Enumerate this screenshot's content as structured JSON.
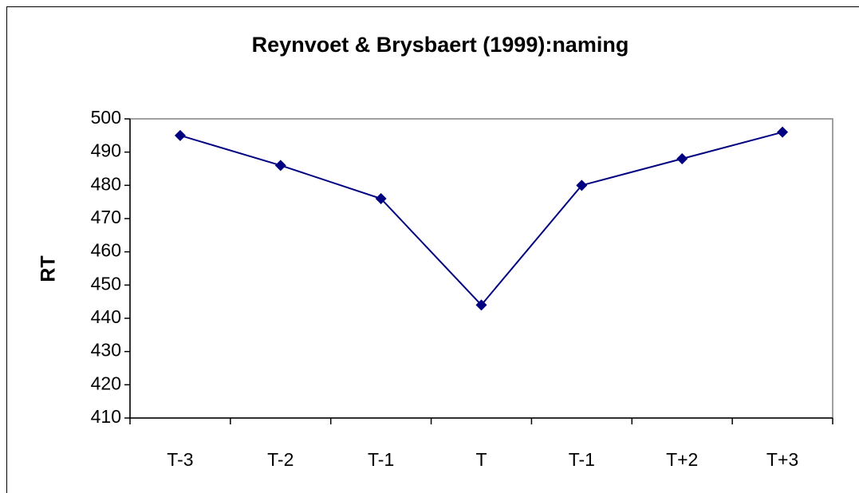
{
  "chart_data": {
    "type": "line",
    "title": "Reynvoet & Brysbaert (1999):naming",
    "y_label": "RT",
    "categories": [
      "T-3",
      "T-2",
      "T-1",
      "T",
      "T-1",
      "T+2",
      "T+3"
    ],
    "series": [
      {
        "name": "RT",
        "color": "#000080",
        "values": [
          495,
          486,
          476,
          444,
          480,
          488,
          496
        ]
      }
    ],
    "ylim": [
      410,
      500
    ],
    "yticks": [
      410,
      420,
      430,
      440,
      450,
      460,
      470,
      480,
      490,
      500
    ],
    "grid": false,
    "legend": false
  }
}
